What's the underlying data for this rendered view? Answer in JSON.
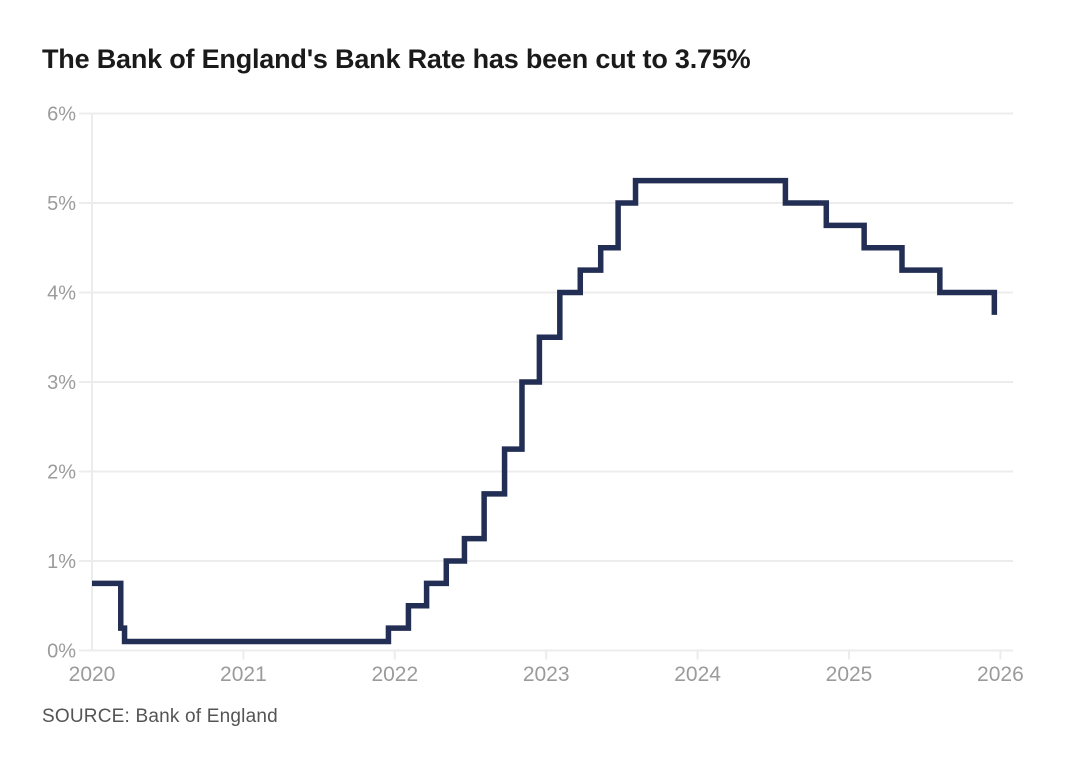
{
  "title": "The Bank of England's Bank Rate has been cut to 3.75%",
  "source_label": "SOURCE: Bank of England",
  "colors": {
    "title": "#1a1a1a",
    "source": "#545454",
    "background": "#ffffff"
  },
  "chart_data": {
    "type": "line",
    "subtype": "step-after",
    "title": "The Bank of England's Bank Rate has been cut to 3.75%",
    "xlabel": "",
    "ylabel": "",
    "grid": true,
    "legend": false,
    "source": "SOURCE: Bank of England",
    "x_axis": {
      "range": [
        2020,
        2026.09
      ],
      "ticks": [
        {
          "v": 2020,
          "label": "2020",
          "tick_mark": false
        },
        {
          "v": 2021,
          "label": "2021",
          "tick_mark": true
        },
        {
          "v": 2022,
          "label": "2022",
          "tick_mark": true
        },
        {
          "v": 2023,
          "label": "2023",
          "tick_mark": true
        },
        {
          "v": 2024,
          "label": "2024",
          "tick_mark": true
        },
        {
          "v": 2025,
          "label": "2025",
          "tick_mark": true
        },
        {
          "v": 2026,
          "label": "2026",
          "tick_mark": true
        }
      ]
    },
    "y_axis": {
      "range": [
        0,
        6
      ],
      "ticks": [
        {
          "v": 0,
          "label": "0%"
        },
        {
          "v": 1,
          "label": "1%"
        },
        {
          "v": 2,
          "label": "2%"
        },
        {
          "v": 3,
          "label": "3%"
        },
        {
          "v": 4,
          "label": "4%"
        },
        {
          "v": 5,
          "label": "5%"
        },
        {
          "v": 6,
          "label": "6%"
        }
      ]
    },
    "series": [
      {
        "name": "Bank of England Bank Rate (%)",
        "color": "#232e54",
        "points": [
          [
            2020.0,
            0.75
          ],
          [
            2020.19,
            0.25
          ],
          [
            2020.215,
            0.1
          ],
          [
            2021.958,
            0.25
          ],
          [
            2022.09,
            0.5
          ],
          [
            2022.21,
            0.75
          ],
          [
            2022.34,
            1.0
          ],
          [
            2022.46,
            1.25
          ],
          [
            2022.59,
            1.75
          ],
          [
            2022.725,
            2.25
          ],
          [
            2022.84,
            3.0
          ],
          [
            2022.955,
            3.5
          ],
          [
            2023.09,
            4.0
          ],
          [
            2023.225,
            4.25
          ],
          [
            2023.36,
            4.5
          ],
          [
            2023.475,
            5.0
          ],
          [
            2023.59,
            5.25
          ],
          [
            2024.58,
            5.0
          ],
          [
            2024.85,
            4.75
          ],
          [
            2025.1,
            4.5
          ],
          [
            2025.35,
            4.25
          ],
          [
            2025.6,
            4.0
          ],
          [
            2025.96,
            3.75
          ]
        ]
      }
    ],
    "colors": {
      "grid": "#ececec",
      "axis": "#ececec",
      "tick_label": "#9b9b9b"
    }
  }
}
